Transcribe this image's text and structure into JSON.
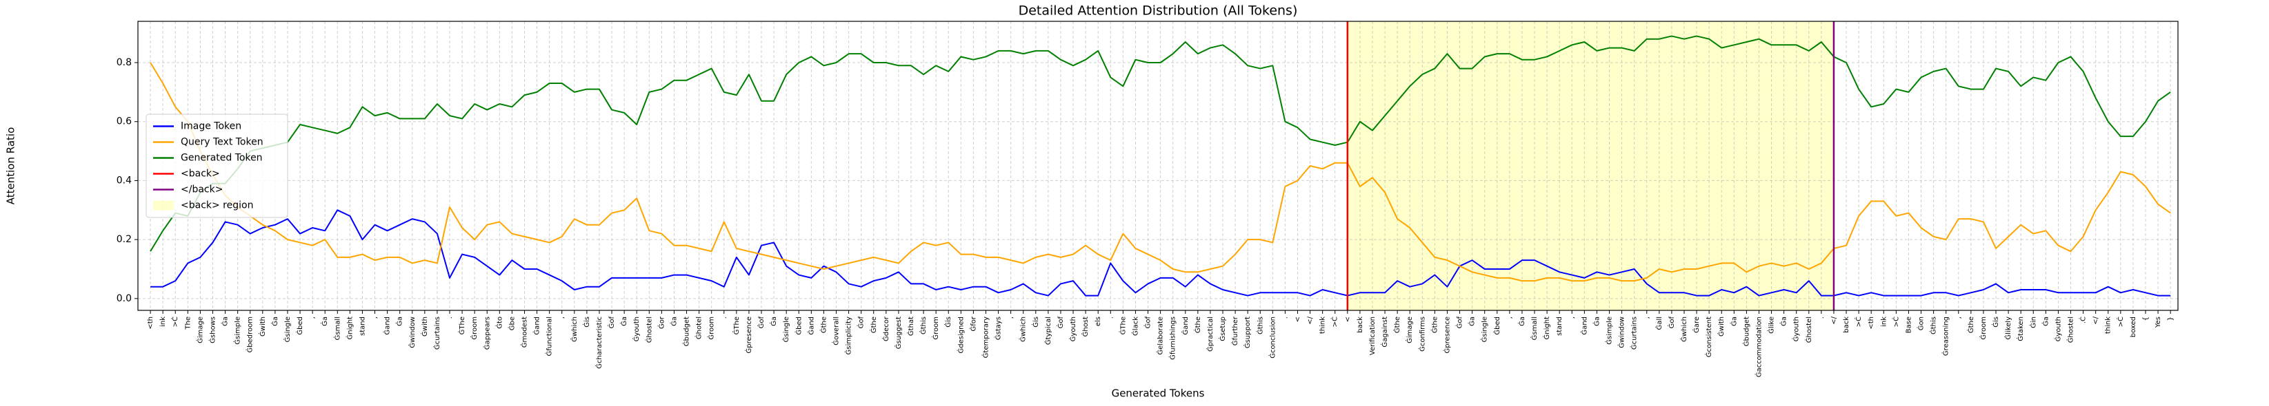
{
  "chart_data": {
    "type": "line",
    "title": "Detailed Attention Distribution (All Tokens)",
    "xlabel": "Generated Tokens",
    "ylabel": "Attention Ratio",
    "categories": [
      "<th",
      "ink",
      ">Ċ",
      "The",
      "Ġimage",
      "Ġshows",
      "Ġa",
      "Ġsimple",
      "Ġbedroom",
      "Ġwith",
      "Ġa",
      "Ġsingle",
      "Ġbed",
      ",",
      "Ġa",
      "Ġsmall",
      "Ġnight",
      "stand",
      ",",
      "Ġand",
      "Ġa",
      "Ġwindow",
      "Ġwith",
      "Ġcurtains",
      ".",
      "ĠThe",
      "Ġroom",
      "Ġappears",
      "Ġto",
      "Ġbe",
      "Ġmodest",
      "Ġand",
      "Ġfunctional",
      ",",
      "Ġwhich",
      "Ġis",
      "Ġcharacteristic",
      "Ġof",
      "Ġa",
      "Ġyouth",
      "Ġhostel",
      "Ġor",
      "Ġa",
      "Ġbudget",
      "Ġhotel",
      "Ġroom",
      ".",
      "ĠThe",
      "Ġpresence",
      "Ġof",
      "Ġa",
      "Ġsingle",
      "Ġbed",
      "Ġand",
      "Ġthe",
      "Ġoverall",
      "Ġsimplicity",
      "Ġof",
      "Ġthe",
      "Ġdecor",
      "Ġsuggest",
      "Ġthat",
      "Ġthis",
      "Ġroom",
      "Ġis",
      "Ġdesigned",
      "Ġfor",
      "Ġtemporary",
      "Ġstays",
      ",",
      "Ġwhich",
      "Ġis",
      "Ġtypical",
      "Ġof",
      "Ġyouth",
      "Ġhost",
      "els",
      ".",
      "ĠThe",
      "Ġlack",
      "Ġof",
      "Ġelaborate",
      "Ġfurnishings",
      "Ġand",
      "Ġthe",
      "Ġpractical",
      "Ġsetup",
      "Ġfurther",
      "Ġsupport",
      "Ġthis",
      "Ġconclusion",
      ".",
      "<",
      "</",
      "think",
      ">Ċ",
      "<",
      "back",
      "Verification",
      "Ġagainst",
      "Ġthe",
      "Ġimage",
      "Ġconfirms",
      "Ġthe",
      "Ġpresence",
      "Ġof",
      "Ġa",
      "Ġsingle",
      "Ġbed",
      ",",
      "Ġa",
      "Ġsmall",
      "Ġnight",
      "stand",
      ",",
      "Ġand",
      "Ġa",
      "Ġsimple",
      "Ġwindow",
      "Ġcurtains",
      ",",
      "Ġall",
      "Ġof",
      "Ġwhich",
      "Ġare",
      "Ġconsistent",
      "Ġwith",
      "Ġa",
      "Ġbudget",
      "Ġaccommodation",
      "Ġlike",
      "Ġa",
      "Ġyouth",
      "Ġhostel",
      ".",
      "</",
      "back",
      ">Ċ",
      "<th",
      "ink",
      ">Ċ",
      "Base",
      "Ġon",
      "Ġthis",
      "Ġreasoning",
      ",",
      "Ġthe",
      "Ġroom",
      "Ġis",
      "Ġlikely",
      "Ġtaken",
      "Ġin",
      "Ġa",
      "Ġyouth",
      "Ġhostel",
      ".Ċ",
      "</",
      "think",
      ">Ċ",
      "boxed",
      "{",
      "Yes",
      "}"
    ],
    "series": [
      {
        "name": "Image Token",
        "color": "blue",
        "values": [
          0.04,
          0.04,
          0.06,
          0.12,
          0.14,
          0.19,
          0.26,
          0.25,
          0.22,
          0.24,
          0.25,
          0.27,
          0.22,
          0.24,
          0.23,
          0.3,
          0.28,
          0.2,
          0.25,
          0.23,
          0.25,
          0.27,
          0.26,
          0.22,
          0.07,
          0.15,
          0.14,
          0.11,
          0.08,
          0.13,
          0.1,
          0.1,
          0.08,
          0.06,
          0.03,
          0.04,
          0.04,
          0.07,
          0.07,
          0.07,
          0.07,
          0.07,
          0.08,
          0.08,
          0.07,
          0.06,
          0.04,
          0.14,
          0.08,
          0.18,
          0.19,
          0.11,
          0.08,
          0.07,
          0.11,
          0.09,
          0.05,
          0.04,
          0.06,
          0.07,
          0.09,
          0.05,
          0.05,
          0.03,
          0.04,
          0.03,
          0.04,
          0.04,
          0.02,
          0.03,
          0.05,
          0.02,
          0.01,
          0.05,
          0.06,
          0.01,
          0.01,
          0.12,
          0.06,
          0.02,
          0.05,
          0.07,
          0.07,
          0.04,
          0.08,
          0.05,
          0.03,
          0.02,
          0.01,
          0.02,
          0.02,
          0.02,
          0.02,
          0.01,
          0.03,
          0.02,
          0.01,
          0.02,
          0.02,
          0.02,
          0.06,
          0.04,
          0.05,
          0.08,
          0.04,
          0.11,
          0.13,
          0.1,
          0.1,
          0.1,
          0.13,
          0.13,
          0.11,
          0.09,
          0.08,
          0.07,
          0.09,
          0.08,
          0.09,
          0.1,
          0.05,
          0.02,
          0.02,
          0.02,
          0.01,
          0.01,
          0.03,
          0.02,
          0.04,
          0.01,
          0.02,
          0.03,
          0.02,
          0.06,
          0.01,
          0.01,
          0.02,
          0.01,
          0.02,
          0.01,
          0.01,
          0.01,
          0.01,
          0.02,
          0.02,
          0.01,
          0.02,
          0.03,
          0.05,
          0.02,
          0.03,
          0.03,
          0.03,
          0.02,
          0.02,
          0.02,
          0.02,
          0.04,
          0.02,
          0.03,
          0.02,
          0.01,
          0.01
        ]
      },
      {
        "name": "Query Text Token",
        "color": "orange",
        "values": [
          0.8,
          0.73,
          0.65,
          0.6,
          0.5,
          0.42,
          0.35,
          0.31,
          0.28,
          0.25,
          0.23,
          0.2,
          0.19,
          0.18,
          0.2,
          0.14,
          0.14,
          0.15,
          0.13,
          0.14,
          0.14,
          0.12,
          0.13,
          0.12,
          0.31,
          0.24,
          0.2,
          0.25,
          0.26,
          0.22,
          0.21,
          0.2,
          0.19,
          0.21,
          0.27,
          0.25,
          0.25,
          0.29,
          0.3,
          0.34,
          0.23,
          0.22,
          0.18,
          0.18,
          0.17,
          0.16,
          0.26,
          0.17,
          0.16,
          0.15,
          0.14,
          0.13,
          0.12,
          0.11,
          0.1,
          0.11,
          0.12,
          0.13,
          0.14,
          0.13,
          0.12,
          0.16,
          0.19,
          0.18,
          0.19,
          0.15,
          0.15,
          0.14,
          0.14,
          0.13,
          0.12,
          0.14,
          0.15,
          0.14,
          0.15,
          0.18,
          0.15,
          0.13,
          0.22,
          0.17,
          0.15,
          0.13,
          0.1,
          0.09,
          0.09,
          0.1,
          0.11,
          0.15,
          0.2,
          0.2,
          0.19,
          0.38,
          0.4,
          0.45,
          0.44,
          0.46,
          0.46,
          0.38,
          0.41,
          0.36,
          0.27,
          0.24,
          0.19,
          0.14,
          0.13,
          0.11,
          0.09,
          0.08,
          0.07,
          0.07,
          0.06,
          0.06,
          0.07,
          0.07,
          0.06,
          0.06,
          0.07,
          0.07,
          0.06,
          0.06,
          0.07,
          0.1,
          0.09,
          0.1,
          0.1,
          0.11,
          0.12,
          0.12,
          0.09,
          0.11,
          0.12,
          0.11,
          0.12,
          0.1,
          0.12,
          0.17,
          0.18,
          0.28,
          0.33,
          0.33,
          0.28,
          0.29,
          0.24,
          0.21,
          0.2,
          0.27,
          0.27,
          0.26,
          0.17,
          0.21,
          0.25,
          0.22,
          0.23,
          0.18,
          0.16,
          0.21,
          0.3,
          0.36,
          0.43,
          0.42,
          0.38,
          0.32,
          0.29
        ]
      },
      {
        "name": "Generated Token",
        "color": "green",
        "values": [
          0.16,
          0.23,
          0.29,
          0.28,
          0.36,
          0.39,
          0.39,
          0.44,
          0.5,
          0.51,
          0.52,
          0.53,
          0.59,
          0.58,
          0.57,
          0.56,
          0.58,
          0.65,
          0.62,
          0.63,
          0.61,
          0.61,
          0.61,
          0.66,
          0.62,
          0.61,
          0.66,
          0.64,
          0.66,
          0.65,
          0.69,
          0.7,
          0.73,
          0.73,
          0.7,
          0.71,
          0.71,
          0.64,
          0.63,
          0.59,
          0.7,
          0.71,
          0.74,
          0.74,
          0.76,
          0.78,
          0.7,
          0.69,
          0.76,
          0.67,
          0.67,
          0.76,
          0.8,
          0.82,
          0.79,
          0.8,
          0.83,
          0.83,
          0.8,
          0.8,
          0.79,
          0.79,
          0.76,
          0.79,
          0.77,
          0.82,
          0.81,
          0.82,
          0.84,
          0.84,
          0.83,
          0.84,
          0.84,
          0.81,
          0.79,
          0.81,
          0.84,
          0.75,
          0.72,
          0.81,
          0.8,
          0.8,
          0.83,
          0.87,
          0.83,
          0.85,
          0.86,
          0.83,
          0.79,
          0.78,
          0.79,
          0.6,
          0.58,
          0.54,
          0.53,
          0.52,
          0.53,
          0.6,
          0.57,
          0.62,
          0.67,
          0.72,
          0.76,
          0.78,
          0.83,
          0.78,
          0.78,
          0.82,
          0.83,
          0.83,
          0.81,
          0.81,
          0.82,
          0.84,
          0.86,
          0.87,
          0.84,
          0.85,
          0.85,
          0.84,
          0.88,
          0.88,
          0.89,
          0.88,
          0.89,
          0.88,
          0.85,
          0.86,
          0.87,
          0.88,
          0.86,
          0.86,
          0.86,
          0.84,
          0.87,
          0.82,
          0.8,
          0.71,
          0.65,
          0.66,
          0.71,
          0.7,
          0.75,
          0.77,
          0.78,
          0.72,
          0.71,
          0.71,
          0.78,
          0.77,
          0.72,
          0.75,
          0.74,
          0.8,
          0.82,
          0.77,
          0.68,
          0.6,
          0.55,
          0.55,
          0.6,
          0.67,
          0.7
        ]
      }
    ],
    "markers": [
      {
        "name": "<back>",
        "color": "red",
        "index": 96
      },
      {
        "name": "</back>",
        "color": "purple",
        "index": 135
      }
    ],
    "region": {
      "name": "<back> region",
      "color": "yellow",
      "alpha": 0.2,
      "start": 96,
      "end": 135
    },
    "ylim": [
      -0.04,
      0.94
    ],
    "yticks": [
      {
        "value": 0,
        "label": "0.0"
      },
      0.2,
      0.4,
      0.6,
      0.8
    ],
    "grid": true,
    "legend": "center left"
  }
}
